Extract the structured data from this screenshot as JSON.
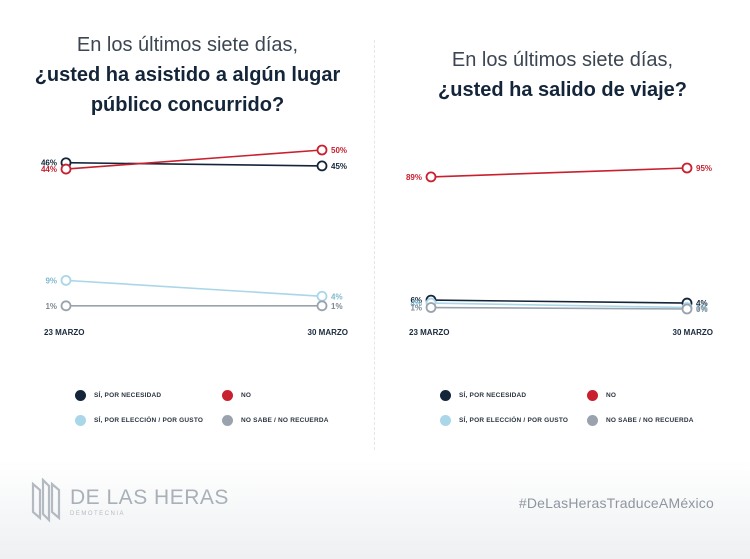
{
  "footer": {
    "brand": "DE LAS HERAS",
    "brand_sub": "DEMOTECNIA",
    "hashtag": "#DeLasHerasTraduceAMéxico"
  },
  "legend_colors": {
    "necesidad": "#14253a",
    "no": "#c8202f",
    "gusto": "#a9d6e8",
    "no_sabe": "#9aa3ad"
  },
  "chart_data": [
    {
      "type": "line",
      "title_light": "En los últimos siete días,",
      "title_bold": "¿usted ha asistido a algún lugar público concurrido?",
      "categories": [
        "23 MARZO",
        "30 MARZO"
      ],
      "ylim": [
        0,
        50
      ],
      "series": [
        {
          "name": "SÍ, POR NECESIDAD",
          "values": [
            46,
            45
          ],
          "labels": [
            "46%",
            "45%"
          ],
          "color": "#14253a"
        },
        {
          "name": "NO",
          "values": [
            44,
            50
          ],
          "labels": [
            "44%",
            "50%"
          ],
          "color": "#c8202f"
        },
        {
          "name": "SÍ, POR ELECCIÓN / POR GUSTO",
          "values": [
            9,
            4
          ],
          "labels": [
            "9%",
            "4%"
          ],
          "color": "#a9d6e8"
        },
        {
          "name": "NO SABE / NO RECUERDA",
          "values": [
            1,
            1
          ],
          "labels": [
            "1%",
            "1%"
          ],
          "color": "#9aa3ad"
        }
      ]
    },
    {
      "type": "line",
      "title_light": "En los últimos siete días,",
      "title_bold": "¿usted ha salido de viaje?",
      "categories": [
        "23 MARZO",
        "30 MARZO"
      ],
      "ylim": [
        0,
        95
      ],
      "series": [
        {
          "name": "SÍ, POR NECESIDAD",
          "values": [
            6,
            4
          ],
          "labels": [
            "6%",
            "4%"
          ],
          "color": "#14253a"
        },
        {
          "name": "NO",
          "values": [
            89,
            95
          ],
          "labels": [
            "89%",
            "95%"
          ],
          "color": "#c8202f"
        },
        {
          "name": "SÍ, POR ELECCIÓN / POR GUSTO",
          "values": [
            4,
            1
          ],
          "labels": [
            "4%",
            "1%"
          ],
          "color": "#a9d6e8"
        },
        {
          "name": "NO SABE / NO RECUERDA",
          "values": [
            1,
            0
          ],
          "labels": [
            "1%",
            "0%"
          ],
          "color": "#9aa3ad"
        }
      ]
    }
  ]
}
